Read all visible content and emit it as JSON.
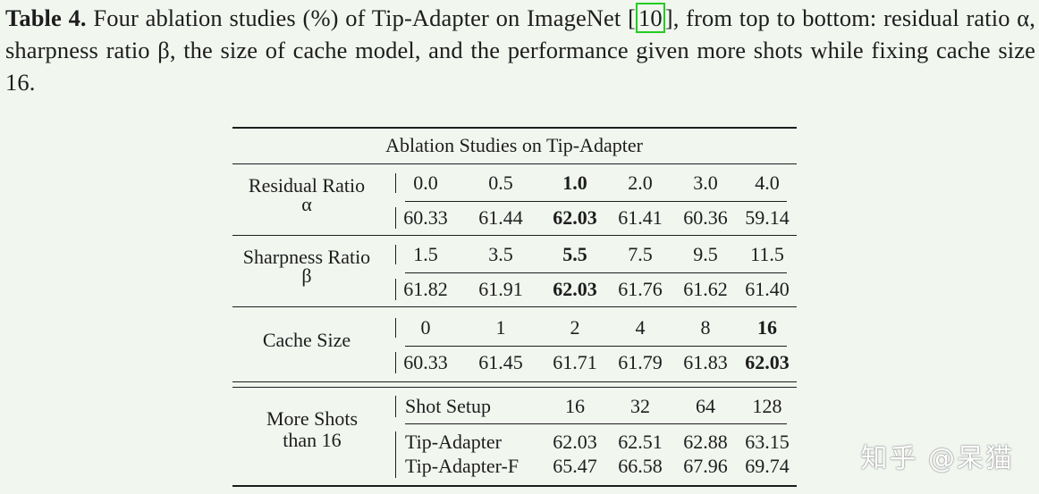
{
  "caption": {
    "label": "Table 4.",
    "text_before_ref": " Four ablation studies (%) of Tip-Adapter on ImageNet ",
    "ref": "10",
    "text_after_ref": ", from top to bottom: residual ratio α, sharpness ratio β, the size of cache model, and the performance given more shots while fixing cache size 16."
  },
  "table": {
    "title": "Ablation Studies on Tip-Adapter",
    "sections": [
      {
        "label": [
          "Residual Ratio",
          "α"
        ],
        "params": [
          "0.0",
          "0.5",
          "1.0",
          "2.0",
          "3.0",
          "4.0"
        ],
        "results": [
          "60.33",
          "61.44",
          "62.03",
          "61.41",
          "60.36",
          "59.14"
        ],
        "best_index": 2
      },
      {
        "label": [
          "Sharpness Ratio",
          "β"
        ],
        "params": [
          "1.5",
          "3.5",
          "5.5",
          "7.5",
          "9.5",
          "11.5"
        ],
        "results": [
          "61.82",
          "61.91",
          "62.03",
          "61.76",
          "61.62",
          "61.40"
        ],
        "best_index": 2
      },
      {
        "label": [
          "Cache Size"
        ],
        "params": [
          "0",
          "1",
          "2",
          "4",
          "8",
          "16"
        ],
        "results": [
          "60.33",
          "61.45",
          "61.71",
          "61.79",
          "61.83",
          "62.03"
        ],
        "best_index": 5
      }
    ],
    "shots": {
      "label": [
        "More Shots",
        "than 16"
      ],
      "header": {
        "name": "Shot Setup",
        "values": [
          "16",
          "32",
          "64",
          "128"
        ]
      },
      "rows": [
        {
          "name": "Tip-Adapter",
          "values": [
            "62.03",
            "62.51",
            "62.88",
            "63.15"
          ]
        },
        {
          "name": "Tip-Adapter-F",
          "values": [
            "65.47",
            "66.58",
            "67.96",
            "69.74"
          ]
        }
      ]
    }
  },
  "watermark": "知乎 @呆猫",
  "colors": {
    "background": "#f1f6ef",
    "text": "#1d1d1d",
    "ref_box": "#22cc22"
  }
}
